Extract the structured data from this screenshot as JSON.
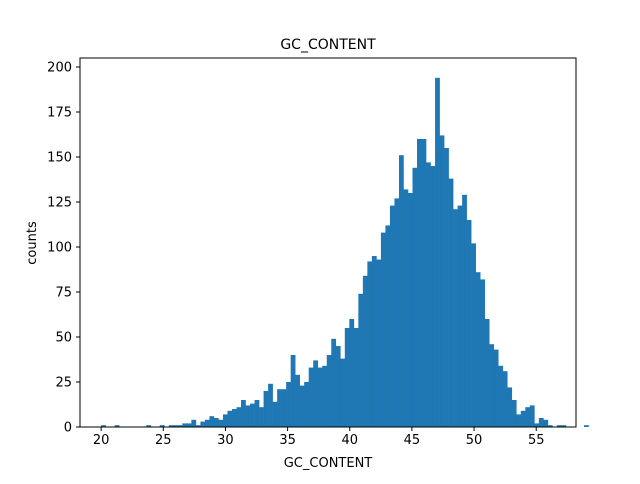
{
  "chart_data": {
    "type": "bar",
    "title": "GC_CONTENT",
    "xlabel": "GC_CONTENT",
    "ylabel": "counts",
    "xlim": [
      18.3,
      58.2
    ],
    "ylim": [
      0,
      205
    ],
    "xticks": [
      20,
      25,
      30,
      35,
      40,
      45,
      50,
      55
    ],
    "yticks": [
      0,
      25,
      50,
      75,
      100,
      125,
      150,
      175,
      200
    ],
    "bar_color": "#1f77b4",
    "bin_width": 0.363,
    "bin_start": 20.0,
    "values": [
      1,
      0,
      0,
      1,
      0,
      0,
      0,
      0,
      0,
      0,
      1,
      0,
      0,
      1,
      0,
      1,
      1,
      1,
      2,
      2,
      4,
      1,
      3,
      4,
      6,
      5,
      4,
      7,
      9,
      10,
      11,
      15,
      12,
      13,
      15,
      11,
      20,
      24,
      14,
      21,
      21,
      25,
      40,
      29,
      23,
      25,
      33,
      37,
      33,
      34,
      40,
      49,
      45,
      38,
      55,
      60,
      55,
      74,
      84,
      92,
      95,
      93,
      108,
      112,
      123,
      127,
      151,
      132,
      130,
      144,
      160,
      160,
      147,
      145,
      194,
      162,
      155,
      138,
      121,
      123,
      129,
      115,
      102,
      86,
      82,
      60,
      46,
      43,
      34,
      31,
      22,
      15,
      7,
      9,
      11,
      12,
      2,
      5,
      4,
      1,
      0,
      1,
      1,
      0,
      0,
      0,
      0,
      1
    ]
  }
}
